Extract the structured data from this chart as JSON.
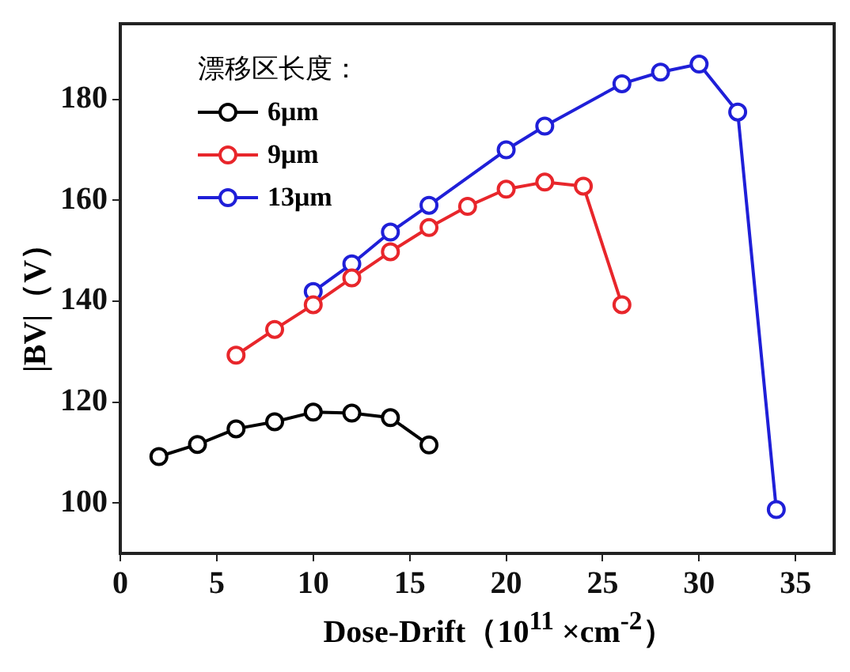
{
  "chart_data": {
    "type": "line",
    "xlabel": "Dose-Drift（10$^{11}$ ×cm$^{-2}$）",
    "ylabel": "|BV|（V）",
    "legend_title": "漂移区长度：",
    "legend": "top left",
    "marker": "circle",
    "line_style": "solid",
    "grid": false,
    "xlim": [
      0,
      37
    ],
    "xticks": [
      0,
      5,
      10,
      15,
      20,
      25,
      30,
      35
    ],
    "ylim": [
      90,
      195
    ],
    "yticks": [
      100,
      120,
      140,
      160,
      180
    ],
    "series": [
      {
        "name": "6μm",
        "color": "#000000",
        "x": [
          2,
          4,
          6,
          8,
          10,
          12,
          14,
          16
        ],
        "values": [
          109.2,
          111.6,
          114.7,
          116.1,
          118.0,
          117.8,
          116.9,
          111.5
        ]
      },
      {
        "name": "9μm",
        "color": "#e8262b",
        "x": [
          6,
          8,
          10,
          12,
          14,
          16,
          18,
          20,
          22,
          24,
          26
        ],
        "values": [
          129.3,
          134.4,
          139.3,
          144.6,
          149.8,
          154.6,
          158.8,
          162.2,
          163.6,
          162.8,
          139.3
        ]
      },
      {
        "name": "13μm",
        "color": "#1f1fd8",
        "x": [
          10,
          12,
          14,
          16,
          20,
          22,
          26,
          28,
          30,
          32,
          34
        ],
        "values": [
          141.9,
          147.4,
          153.7,
          159.0,
          170.0,
          174.7,
          183.1,
          185.4,
          187.0,
          177.5,
          98.7
        ]
      }
    ]
  }
}
